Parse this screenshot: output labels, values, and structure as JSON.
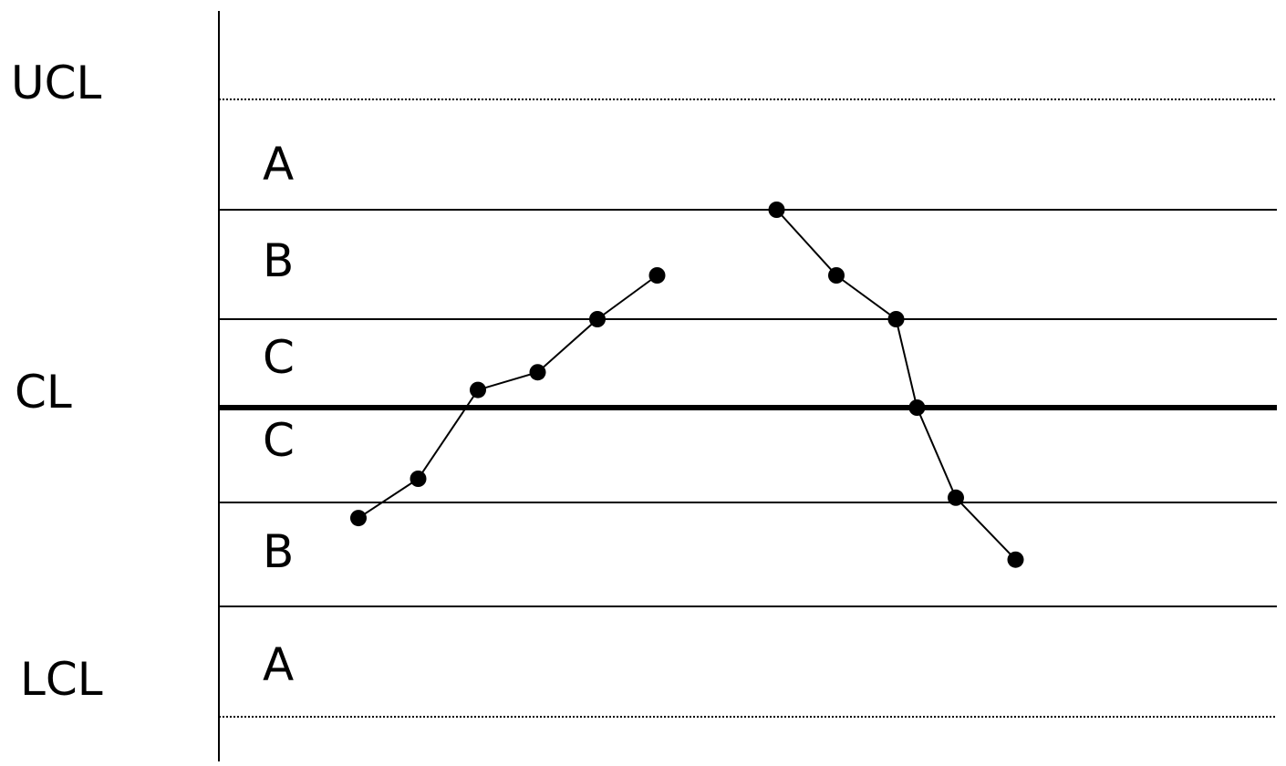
{
  "chart_data": {
    "type": "line",
    "title": "",
    "xlabel": "",
    "ylabel": "",
    "limit_labels": {
      "ucl": "UCL",
      "cl": "CL",
      "lcl": "LCL"
    },
    "zone_labels": [
      "A",
      "B",
      "C",
      "C",
      "B",
      "A"
    ],
    "ylim": [
      -3,
      3
    ],
    "xlim": [
      0,
      16
    ],
    "zone_boundaries": [
      3,
      2,
      1,
      0,
      -1,
      -2,
      -3
    ],
    "series": [
      {
        "x": [
          1,
          2,
          3,
          4,
          5,
          6
        ],
        "values": [
          -1.15,
          -0.75,
          0.2,
          0.4,
          1.0,
          1.4
        ]
      },
      {
        "x": [
          8,
          9,
          10,
          10.35,
          11,
          12
        ],
        "values": [
          2.0,
          1.4,
          1.0,
          0.0,
          -0.95,
          -1.55
        ]
      }
    ],
    "style": {
      "line_color": "#000000",
      "point_color": "#000000",
      "background": "#ffffff"
    }
  }
}
